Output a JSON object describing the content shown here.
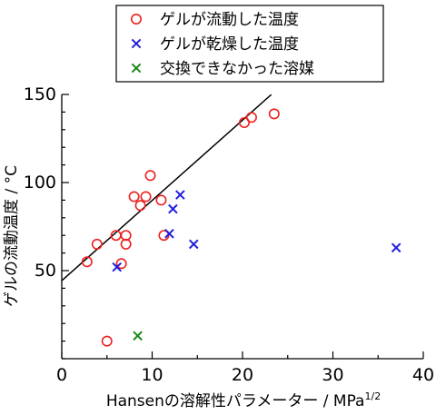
{
  "chart_data": {
    "type": "scatter",
    "xlabel": "Hansenの溶解性パラメーター / MPa",
    "xlabel_superscript": "1/2",
    "ylabel": "ゲルの流動温度 / °C",
    "xlim": [
      0,
      40
    ],
    "ylim": [
      0,
      150
    ],
    "xticks": [
      0,
      10,
      20,
      30,
      40
    ],
    "yticks": [
      50,
      100,
      150
    ],
    "legend_position": "top",
    "series": [
      {
        "name": "ゲルが流動した温度",
        "marker": "circle",
        "color": "#ee2020",
        "points": [
          [
            2.8,
            55
          ],
          [
            3.9,
            65
          ],
          [
            5.0,
            10
          ],
          [
            6.0,
            70
          ],
          [
            6.6,
            54
          ],
          [
            7.1,
            70
          ],
          [
            7.1,
            65
          ],
          [
            8.0,
            92
          ],
          [
            8.7,
            87
          ],
          [
            9.3,
            92
          ],
          [
            9.8,
            104
          ],
          [
            11.0,
            90
          ],
          [
            11.3,
            70
          ],
          [
            20.2,
            134
          ],
          [
            21.0,
            137
          ],
          [
            23.5,
            139
          ]
        ]
      },
      {
        "name": "ゲルが乾燥した温度",
        "marker": "x",
        "color": "#2020dd",
        "points": [
          [
            6.1,
            52
          ],
          [
            11.9,
            71
          ],
          [
            12.3,
            85
          ],
          [
            13.1,
            93
          ],
          [
            14.6,
            65
          ],
          [
            37.0,
            63
          ]
        ]
      },
      {
        "name": "交換できなかった溶媒",
        "marker": "x",
        "color": "#1a8a1a",
        "points": [
          [
            8.4,
            13
          ]
        ]
      }
    ],
    "trendline": {
      "x": [
        0,
        23.2
      ],
      "y": [
        44.3,
        150
      ],
      "color": "#000000"
    }
  }
}
